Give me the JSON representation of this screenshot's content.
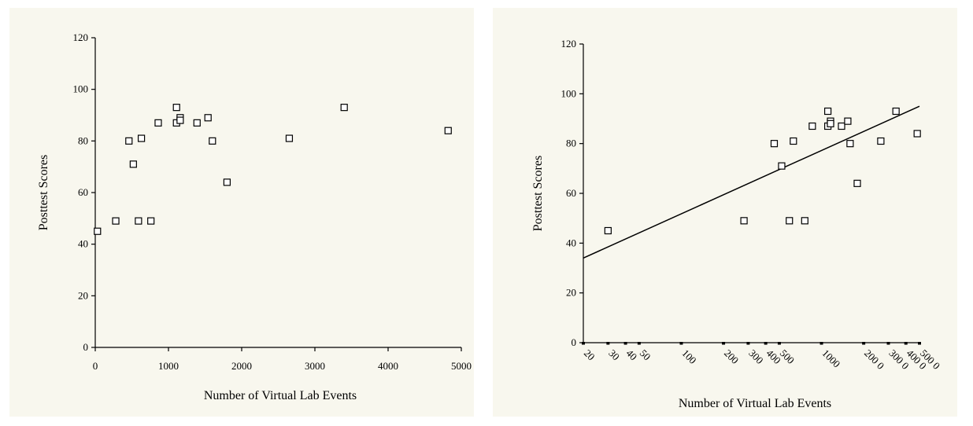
{
  "chart_data": [
    {
      "type": "scatter",
      "title": "",
      "xlabel": "Number of Virtual Lab Events",
      "ylabel": "Posttest Scores",
      "x_scale": "linear",
      "xlim": [
        0,
        5000
      ],
      "ylim": [
        0,
        120
      ],
      "x_ticks": [
        0,
        1000,
        2000,
        3000,
        4000,
        5000
      ],
      "y_ticks": [
        0,
        20,
        40,
        60,
        80,
        100,
        120
      ],
      "x_tick_labels": [
        "0",
        "1000",
        "2000",
        "3000",
        "4000",
        "5000"
      ],
      "y_tick_labels": [
        "0",
        "20",
        "40",
        "60",
        "80",
        "100",
        "120"
      ],
      "grid": false,
      "marker": "open-square",
      "points": [
        {
          "x": 30,
          "y": 45
        },
        {
          "x": 280,
          "y": 49
        },
        {
          "x": 460,
          "y": 80
        },
        {
          "x": 520,
          "y": 71
        },
        {
          "x": 590,
          "y": 49
        },
        {
          "x": 630,
          "y": 81
        },
        {
          "x": 760,
          "y": 49
        },
        {
          "x": 860,
          "y": 87
        },
        {
          "x": 1110,
          "y": 93
        },
        {
          "x": 1110,
          "y": 87
        },
        {
          "x": 1160,
          "y": 89
        },
        {
          "x": 1160,
          "y": 88
        },
        {
          "x": 1390,
          "y": 87
        },
        {
          "x": 1540,
          "y": 89
        },
        {
          "x": 1600,
          "y": 80
        },
        {
          "x": 1800,
          "y": 64
        },
        {
          "x": 2650,
          "y": 81
        },
        {
          "x": 3400,
          "y": 93
        },
        {
          "x": 4820,
          "y": 84
        }
      ]
    },
    {
      "type": "scatter",
      "title": "",
      "xlabel": "Number of Virtual Lab Events",
      "ylabel": "Posttest Scores",
      "x_scale": "log",
      "xlim": [
        20,
        5000
      ],
      "ylim": [
        0,
        120
      ],
      "x_ticks": [
        20,
        30,
        40,
        50,
        100,
        200,
        300,
        400,
        500,
        1000,
        2000,
        3000,
        4000,
        5000
      ],
      "x_tick_labels": [
        "20",
        "30",
        "40",
        "50",
        "100",
        "200",
        "300",
        "400",
        "500",
        "1000",
        "200 0",
        "300 0",
        "400 0",
        "500 0"
      ],
      "y_ticks": [
        0,
        20,
        40,
        60,
        80,
        100,
        120
      ],
      "y_tick_labels": [
        "0",
        "20",
        "40",
        "60",
        "80",
        "100",
        "120"
      ],
      "grid": false,
      "marker": "open-square",
      "trendline": {
        "x": [
          20,
          5000
        ],
        "y": [
          34,
          95
        ]
      },
      "points": [
        {
          "x": 30,
          "y": 45
        },
        {
          "x": 280,
          "y": 49
        },
        {
          "x": 460,
          "y": 80
        },
        {
          "x": 520,
          "y": 71
        },
        {
          "x": 590,
          "y": 49
        },
        {
          "x": 630,
          "y": 81
        },
        {
          "x": 760,
          "y": 49
        },
        {
          "x": 860,
          "y": 87
        },
        {
          "x": 1110,
          "y": 93
        },
        {
          "x": 1110,
          "y": 87
        },
        {
          "x": 1160,
          "y": 89
        },
        {
          "x": 1160,
          "y": 88
        },
        {
          "x": 1390,
          "y": 87
        },
        {
          "x": 1540,
          "y": 89
        },
        {
          "x": 1600,
          "y": 80
        },
        {
          "x": 1800,
          "y": 64
        },
        {
          "x": 2650,
          "y": 81
        },
        {
          "x": 3400,
          "y": 93
        },
        {
          "x": 4820,
          "y": 84
        }
      ]
    }
  ]
}
